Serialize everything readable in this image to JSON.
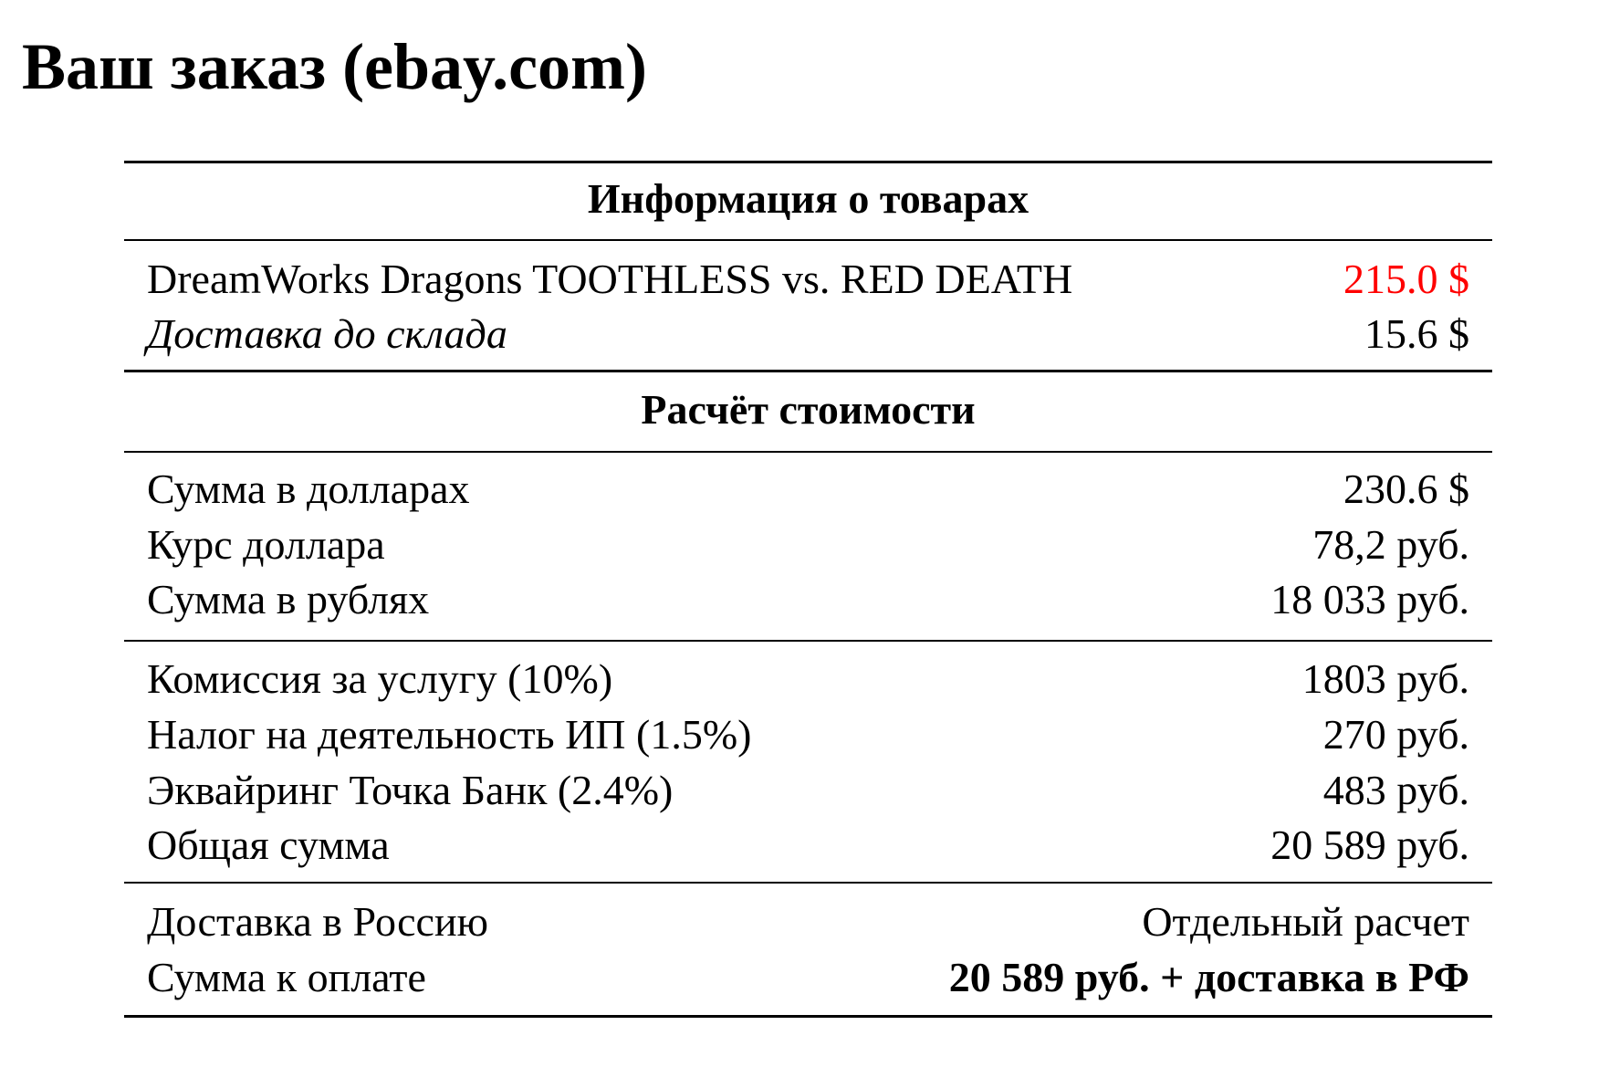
{
  "title": "Ваш заказ (ebay.com)",
  "sections": {
    "items_header": "Информация о товарах",
    "items": [
      {
        "label": "DreamWorks Dragons TOOTHLESS vs. RED DEATH",
        "value": "215.0 $"
      },
      {
        "label": "Доставка до склада",
        "value": "15.6 $"
      }
    ],
    "calc_header": "Расчёт стоимости",
    "conversion": [
      {
        "label": "Сумма в долларах",
        "value": "230.6 $"
      },
      {
        "label": "Курс доллара",
        "value": "78,2 руб."
      },
      {
        "label": "Сумма в рублях",
        "value": "18 033 руб."
      }
    ],
    "fees": [
      {
        "label": "Комиссия за услугу (10%)",
        "value": "1803 руб."
      },
      {
        "label": "Налог на деятельность ИП (1.5%)",
        "value": "270 руб."
      },
      {
        "label": "Эквайринг Точка Банк (2.4%)",
        "value": "483 руб."
      },
      {
        "label": "Общая сумма",
        "value": "20 589 руб."
      }
    ],
    "final": [
      {
        "label": "Доставка в Россию",
        "value": "Отдельный расчет"
      },
      {
        "label": "Сумма к оплате",
        "value": "20 589 руб. + доставка в РФ"
      }
    ]
  },
  "colors": {
    "price_highlight": "#ff0000"
  }
}
